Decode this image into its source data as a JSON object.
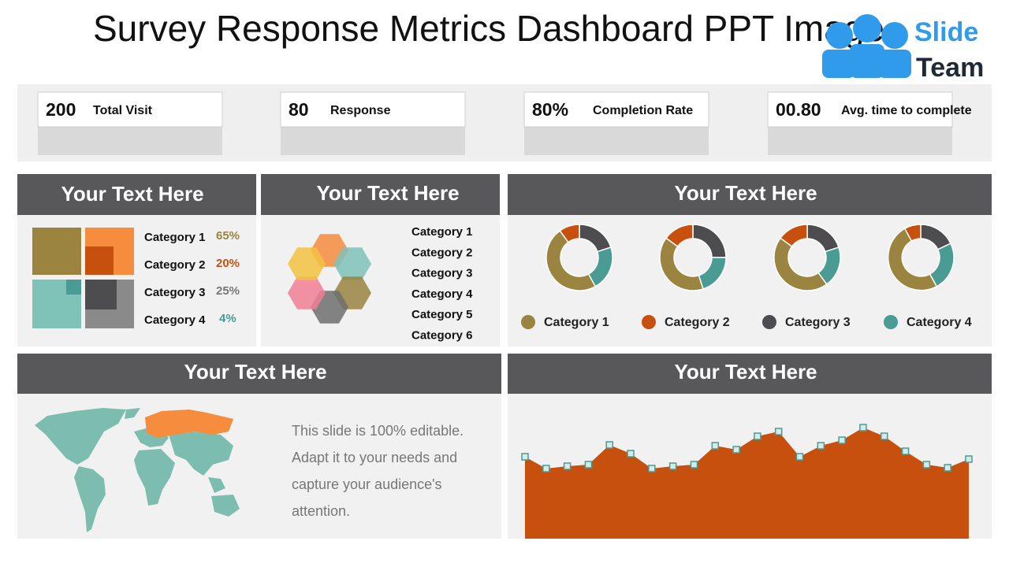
{
  "header": {
    "title": "Survey Response Metrics Dashboard PPT Image",
    "logo": {
      "line1": "Slide",
      "line2": "Team"
    }
  },
  "kpis": [
    {
      "value": "200",
      "label": "Total Visit"
    },
    {
      "value": "80",
      "label": "Response"
    },
    {
      "value": "80%",
      "label": "Completion Rate"
    },
    {
      "value": "00.80",
      "label": "Avg. time to complete"
    }
  ],
  "category_panel": {
    "title": "Your Text Here",
    "items": [
      {
        "label": "Category 1",
        "value": "65%"
      },
      {
        "label": "Category 2",
        "value": "20%"
      },
      {
        "label": "Category 3",
        "value": "25%"
      },
      {
        "label": "Category 4",
        "value": "4%"
      }
    ]
  },
  "hexagon_panel": {
    "title": "Your Text Here",
    "items": [
      "Category 1",
      "Category 2",
      "Category 3",
      "Category 4",
      "Category 5",
      "Category 6"
    ]
  },
  "map_panel": {
    "title": "Your Text Here",
    "text": [
      "This slide is 100% editable.",
      "Adapt it to your needs and",
      "capture your audience's",
      "attention."
    ]
  },
  "chart_data": [
    {
      "type": "donut",
      "title": "Your Text Here",
      "series": [
        {
          "name": "Category 1",
          "color": "#9a8440",
          "values": [
            48,
            40,
            45,
            50
          ]
        },
        {
          "name": "Category 2",
          "color": "#c8500e",
          "values": [
            10,
            15,
            15,
            8
          ]
        },
        {
          "name": "Category 3",
          "color": "#4d4d4f",
          "values": [
            20,
            25,
            20,
            18
          ]
        },
        {
          "name": "Category 4",
          "color": "#4a9b94",
          "values": [
            22,
            20,
            20,
            24
          ]
        }
      ]
    },
    {
      "type": "area",
      "title": "Your Text Here",
      "color": "#c8500e",
      "values": [
        104,
        89,
        92,
        94,
        119,
        108,
        89,
        92,
        94,
        118,
        113,
        130,
        136,
        104,
        118,
        125,
        141,
        130,
        111,
        94,
        90,
        101
      ]
    }
  ]
}
